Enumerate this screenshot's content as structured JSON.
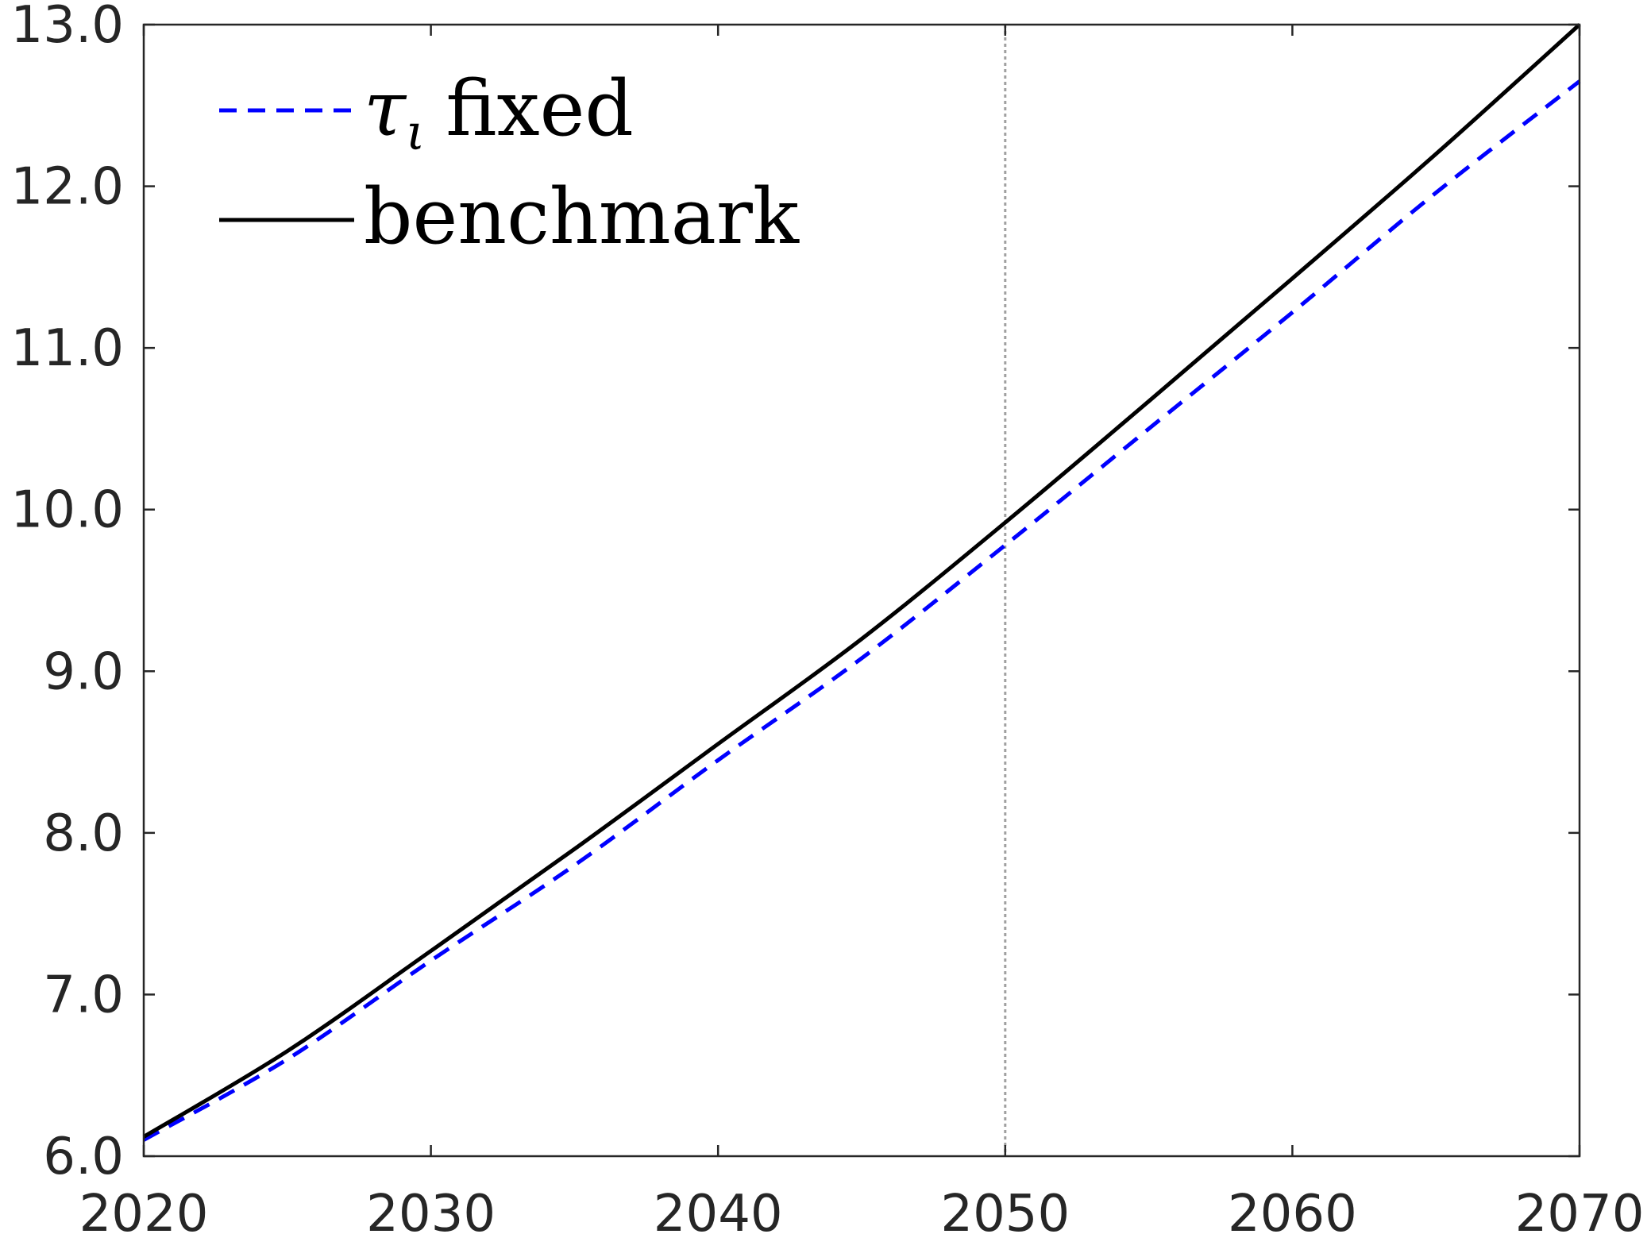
{
  "chart_data": {
    "type": "line",
    "x": [
      2020,
      2025,
      2030,
      2035,
      2040,
      2045,
      2050,
      2055,
      2060,
      2065,
      2070
    ],
    "series": [
      {
        "name": "τ_ι fixed",
        "legend_symbol": "τ",
        "legend_subscript": "ι",
        "legend_text": "fixed",
        "color": "#0000ff",
        "style": "dashed",
        "values": [
          6.1,
          6.6,
          7.21,
          7.8,
          8.45,
          9.08,
          9.78,
          10.5,
          11.22,
          11.96,
          12.65
        ]
      },
      {
        "name": "benchmark",
        "legend_text": "benchmark",
        "color": "#000000",
        "style": "solid",
        "values": [
          6.12,
          6.65,
          7.27,
          7.9,
          8.55,
          9.2,
          9.92,
          10.67,
          11.43,
          12.2,
          13.0
        ]
      }
    ],
    "xlim": [
      2020,
      2070
    ],
    "ylim": [
      6.0,
      13.0
    ],
    "xticks": [
      2020,
      2030,
      2040,
      2050,
      2060,
      2070
    ],
    "yticks": [
      6.0,
      7.0,
      8.0,
      9.0,
      10.0,
      11.0,
      12.0,
      13.0
    ],
    "ytick_labels": [
      "6.0",
      "7.0",
      "8.0",
      "9.0",
      "10.0",
      "11.0",
      "12.0",
      "13.0"
    ],
    "reference_line": {
      "x": 2050,
      "color": "#a0a0a0",
      "style": "dotted"
    },
    "legend_position": "top-left",
    "grid": false,
    "title": "",
    "xlabel": "",
    "ylabel": ""
  }
}
